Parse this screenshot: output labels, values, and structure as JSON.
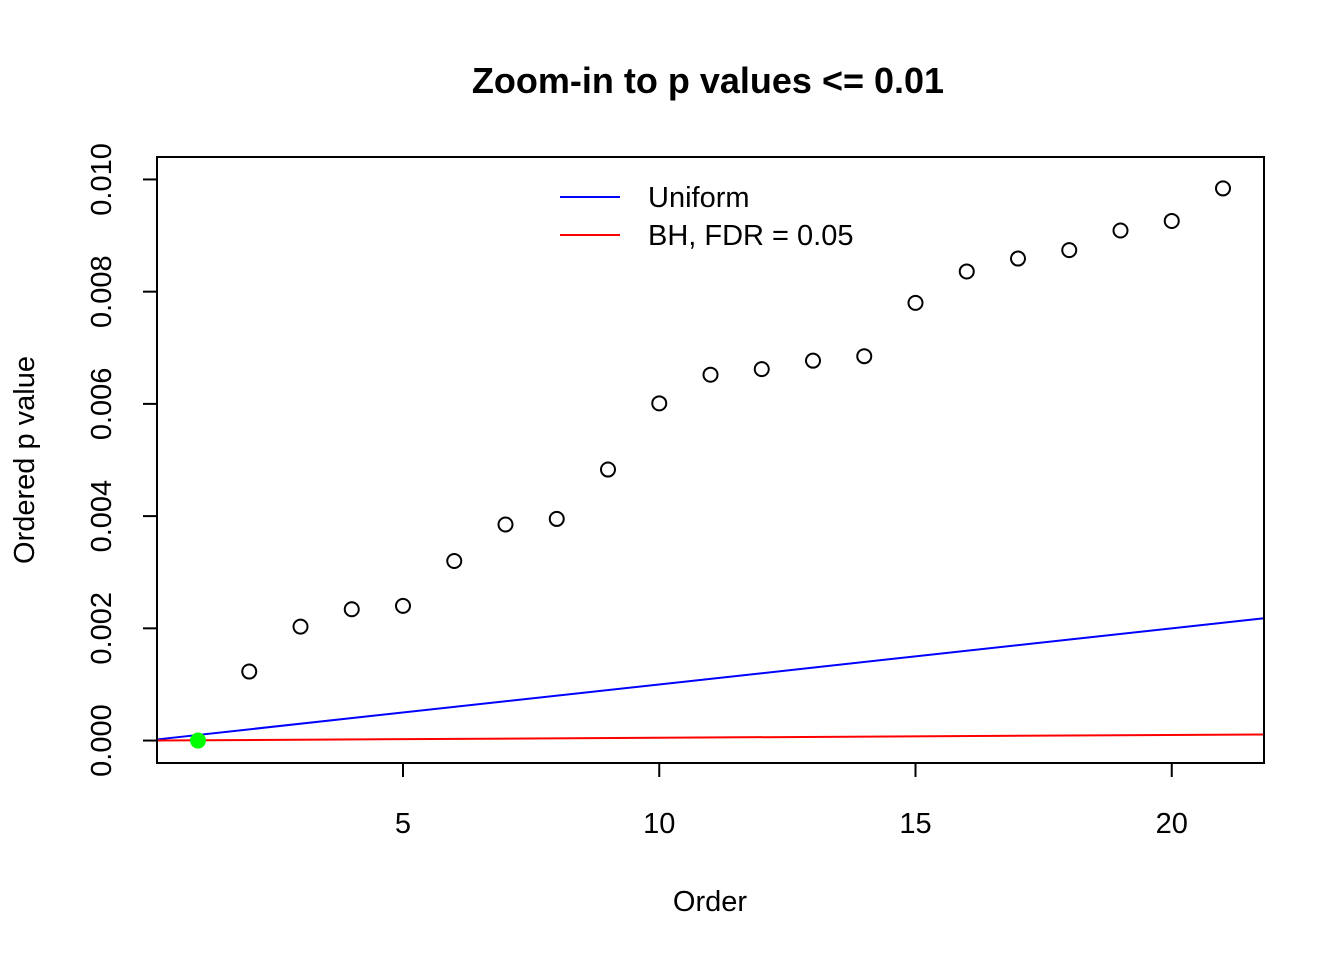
{
  "chart_data": {
    "type": "scatter",
    "title": "Zoom-in to p values <= 0.01",
    "xlabel": "Order",
    "ylabel": "Ordered p value",
    "xlim": [
      0.2,
      21.8
    ],
    "ylim": [
      -0.0004,
      0.0104
    ],
    "x_ticks": [
      5,
      10,
      15,
      20
    ],
    "x_tick_labels": [
      "5",
      "10",
      "15",
      "20"
    ],
    "y_ticks": [
      0,
      0.002,
      0.004,
      0.006,
      0.008,
      0.01
    ],
    "y_tick_labels": [
      "0.000",
      "0.002",
      "0.004",
      "0.006",
      "0.008",
      "0.010"
    ],
    "grid": false,
    "legend_position": "top-center",
    "points": {
      "x": [
        1,
        2,
        3,
        4,
        5,
        6,
        7,
        8,
        9,
        10,
        11,
        12,
        13,
        14,
        15,
        16,
        17,
        18,
        19,
        20,
        21
      ],
      "y": [
        0.0,
        0.00123,
        0.00203,
        0.00234,
        0.0024,
        0.0032,
        0.00385,
        0.00395,
        0.00483,
        0.00601,
        0.00652,
        0.00662,
        0.00677,
        0.00685,
        0.0078,
        0.00836,
        0.00859,
        0.00874,
        0.00909,
        0.00926,
        0.00984
      ],
      "color": "#000000",
      "highlighted_index": 0,
      "highlight_color": "#00ff00"
    },
    "series": [
      {
        "name": "Uniform",
        "type": "line",
        "slope": 0.0001,
        "color": "#0000ff"
      },
      {
        "name": "BH, FDR = 0.05",
        "type": "line",
        "slope": 5e-06,
        "color": "#ff0000"
      }
    ]
  }
}
